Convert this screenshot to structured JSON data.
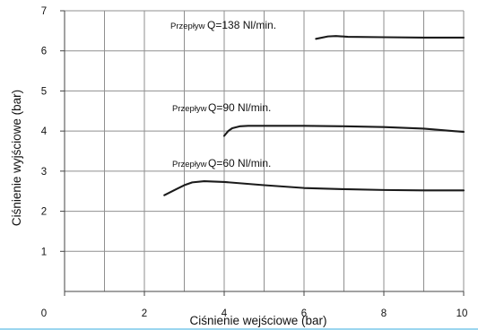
{
  "chart_data": {
    "type": "line",
    "title": "",
    "xlabel": "Ciśnienie wejściowe (bar)",
    "ylabel": "Ciśnienie wyjściowe (bar)",
    "xlim": [
      0,
      10
    ],
    "ylim": [
      0,
      7
    ],
    "x_ticks": [
      "0",
      "2",
      "4",
      "6",
      "8",
      "10"
    ],
    "y_ticks": [
      "1",
      "2",
      "3",
      "4",
      "5",
      "6",
      "7"
    ],
    "grid": true,
    "series": [
      {
        "name": "Przepływ Q=138 Nl/min.",
        "prefix": "Przepływ",
        "label": "Q=138 Nl/min.",
        "x": [
          6.3,
          6.6,
          6.8,
          7.1,
          8.0,
          9.0,
          10.0
        ],
        "y": [
          6.3,
          6.36,
          6.37,
          6.35,
          6.34,
          6.33,
          6.33
        ]
      },
      {
        "name": "Przepływ Q=90 Nl/min.",
        "prefix": "Przepływ",
        "label": "Q=90 Nl/min.",
        "x": [
          4.0,
          4.1,
          4.2,
          4.4,
          4.6,
          5.0,
          6.0,
          7.0,
          8.0,
          9.0,
          10.0
        ],
        "y": [
          3.88,
          4.0,
          4.07,
          4.12,
          4.13,
          4.13,
          4.13,
          4.12,
          4.1,
          4.06,
          3.98
        ]
      },
      {
        "name": "Przepływ Q=60 Nl/min.",
        "prefix": "Przepływ",
        "label": "Q=60 Nl/min.",
        "x": [
          2.5,
          2.8,
          3.0,
          3.2,
          3.5,
          4.0,
          5.0,
          6.0,
          7.0,
          8.0,
          9.0,
          10.0
        ],
        "y": [
          2.4,
          2.55,
          2.65,
          2.72,
          2.75,
          2.73,
          2.65,
          2.58,
          2.55,
          2.53,
          2.52,
          2.52
        ]
      }
    ]
  }
}
